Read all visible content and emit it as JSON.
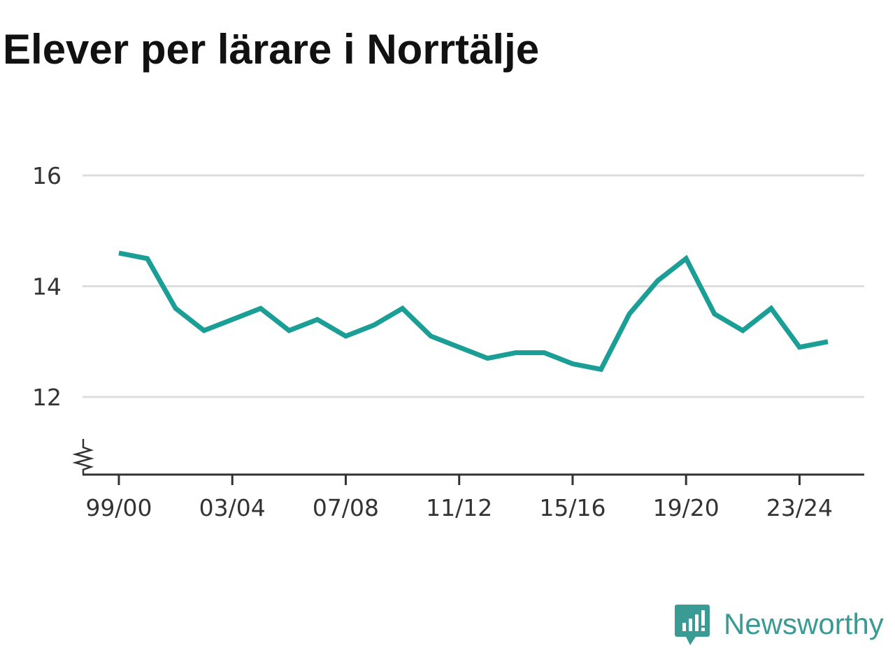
{
  "title": "Elever per lärare i Norrtälje",
  "brand": {
    "name": "Newsworthy",
    "icon": "newsworthy-logo-icon",
    "color": "#3a9b94"
  },
  "chart_data": {
    "type": "line",
    "title": "Elever per lärare i Norrtälje",
    "xlabel": "",
    "ylabel": "",
    "x": [
      "99/00",
      "00/01",
      "01/02",
      "02/03",
      "03/04",
      "04/05",
      "05/06",
      "06/07",
      "07/08",
      "08/09",
      "09/10",
      "10/11",
      "11/12",
      "12/13",
      "13/14",
      "14/15",
      "15/16",
      "16/17",
      "17/18",
      "18/19",
      "19/20",
      "20/21",
      "21/22",
      "22/23",
      "23/24",
      "24/25"
    ],
    "x_tick_labels": [
      "99/00",
      "03/04",
      "07/08",
      "11/12",
      "15/16",
      "19/20",
      "23/24"
    ],
    "y_ticks": [
      "12",
      "14",
      "16"
    ],
    "ylim": [
      10.6,
      16
    ],
    "y_axis_break": true,
    "grid": true,
    "series": [
      {
        "color": "#1a9e96",
        "values": [
          14.6,
          14.5,
          13.6,
          13.2,
          13.4,
          13.6,
          13.2,
          13.4,
          13.1,
          13.3,
          13.6,
          13.1,
          12.9,
          12.7,
          12.8,
          12.8,
          12.6,
          12.5,
          13.5,
          14.1,
          14.5,
          13.5,
          13.2,
          13.6,
          12.9,
          13.0
        ]
      }
    ]
  }
}
